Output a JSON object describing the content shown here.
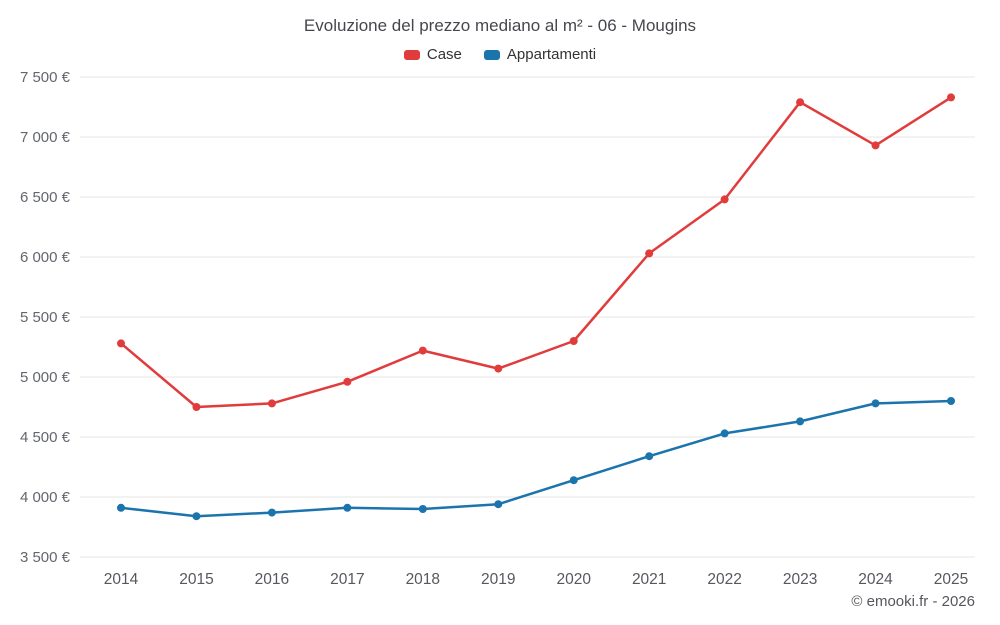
{
  "header": {
    "title": "Evoluzione del prezzo mediano al m² - 06 - Mougins"
  },
  "chart_data": {
    "type": "line",
    "title": "Evoluzione del prezzo mediano al m² - 06 - Mougins",
    "categories": [
      "2014",
      "2015",
      "2016",
      "2017",
      "2018",
      "2019",
      "2020",
      "2021",
      "2022",
      "2023",
      "2024",
      "2025"
    ],
    "series": [
      {
        "name": "Case",
        "color": "#e03c3c",
        "values": [
          5280,
          4750,
          4780,
          4960,
          5220,
          5070,
          5300,
          6030,
          6480,
          7290,
          6930,
          7330
        ]
      },
      {
        "name": "Appartamenti",
        "color": "#1c74ad",
        "values": [
          3910,
          3840,
          3870,
          3910,
          3900,
          3940,
          4140,
          4340,
          4530,
          4630,
          4780,
          4800
        ]
      }
    ],
    "xlabel": "",
    "ylabel": "",
    "ylim": [
      3500,
      7500
    ],
    "yticks": [
      {
        "value": 3500,
        "label": "3 500 €"
      },
      {
        "value": 4000,
        "label": "4 000 €"
      },
      {
        "value": 4500,
        "label": "4 500 €"
      },
      {
        "value": 5000,
        "label": "5 000 €"
      },
      {
        "value": 5500,
        "label": "5 500 €"
      },
      {
        "value": 6000,
        "label": "6 000 €"
      },
      {
        "value": 6500,
        "label": "6 500 €"
      },
      {
        "value": 7000,
        "label": "7 000 €"
      },
      {
        "value": 7500,
        "label": "7 500 €"
      }
    ],
    "grid": true,
    "legend_position": "top"
  },
  "footer": {
    "text": "© emooki.fr - 2026"
  },
  "colors": {
    "grid": "#e6e6e6",
    "tick_label": "#63666d",
    "x_label": "#55585e",
    "title": "#45474d"
  }
}
